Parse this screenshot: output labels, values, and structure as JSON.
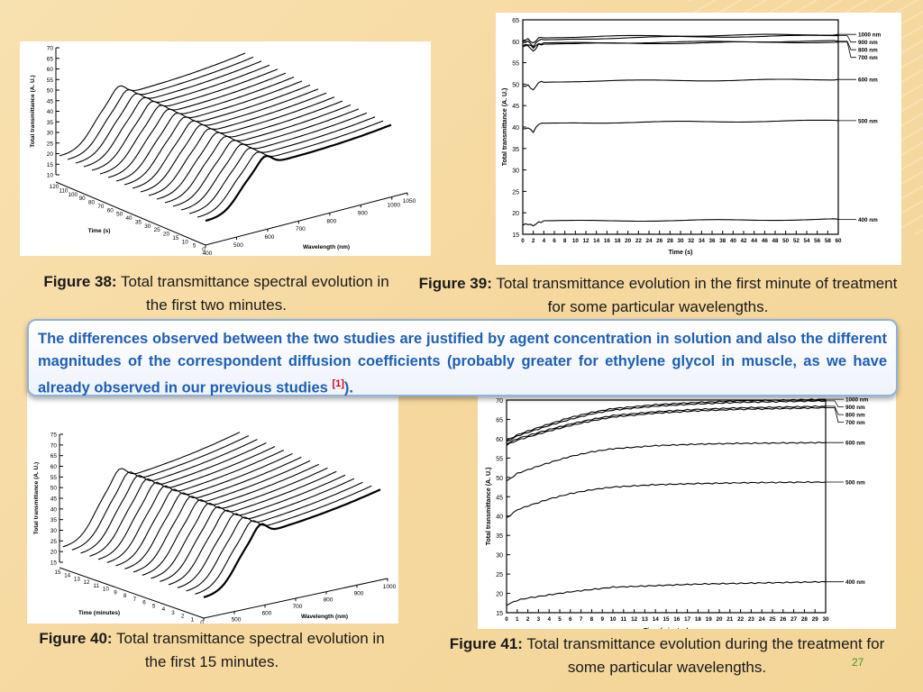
{
  "figures": [
    {
      "label": "Figure 38:",
      "text": "Total transmittance spectral evolution in the first two minutes.",
      "chart_data": {
        "type": "line",
        "kind": "3d-waterfall",
        "ylabel": "Total transmittance (A. U.)",
        "xlabel": "Wavelength (nm)",
        "zlabel": "Time (s)",
        "y_ticks": [
          "10",
          "15",
          "20",
          "25",
          "30",
          "35",
          "40",
          "45",
          "50",
          "55",
          "60",
          "65",
          "70"
        ],
        "x_ticks": [
          "400",
          "500",
          "600",
          "700",
          "800",
          "900",
          "1000",
          "1050"
        ],
        "z_ticks": [
          "120",
          "110",
          "100",
          "90",
          "80",
          "70",
          "60",
          "50",
          "40",
          "35",
          "30",
          "25",
          "20",
          "15",
          "10",
          "5",
          "0"
        ],
        "ylim": [
          10,
          70
        ],
        "xlim": [
          400,
          1050
        ]
      }
    },
    {
      "label": "Figure 39:",
      "text": "Total transmittance evolution in the first minute of treatment for some particular wavelengths.",
      "chart_data": {
        "type": "line",
        "xlabel": "Time (s)",
        "ylabel": "Total transmittance (A. U.)",
        "xlim": [
          0,
          60
        ],
        "ylim": [
          15,
          65
        ],
        "x_ticks": [
          "0",
          "2",
          "4",
          "6",
          "8",
          "10",
          "12",
          "14",
          "16",
          "18",
          "20",
          "22",
          "24",
          "26",
          "28",
          "30",
          "32",
          "34",
          "36",
          "38",
          "40",
          "42",
          "44",
          "46",
          "48",
          "50",
          "52",
          "54",
          "56",
          "58",
          "60"
        ],
        "y_ticks": [
          "15",
          "20",
          "25",
          "30",
          "35",
          "40",
          "45",
          "50",
          "55",
          "60",
          "65"
        ],
        "series": [
          {
            "name": "1000 nm",
            "x": [
              0,
              1,
              2,
              3,
              4,
              10,
              20,
              30,
              40,
              50,
              60
            ],
            "values": [
              60.2,
              60.5,
              59.5,
              60.8,
              60.9,
              61.0,
              61.2,
              61.3,
              61.4,
              61.5,
              61.6
            ]
          },
          {
            "name": "900 nm",
            "x": [
              0,
              1,
              2,
              3,
              4,
              10,
              20,
              30,
              40,
              50,
              60
            ],
            "values": [
              59.6,
              60.0,
              58.8,
              60.3,
              60.4,
              60.6,
              60.8,
              61.0,
              61.1,
              61.2,
              61.3
            ]
          },
          {
            "name": "800 nm",
            "x": [
              0,
              1,
              2,
              3,
              4,
              10,
              20,
              30,
              40,
              50,
              60
            ],
            "values": [
              59.0,
              59.3,
              58.5,
              59.4,
              59.5,
              59.6,
              59.7,
              59.8,
              59.9,
              60.0,
              60.0
            ]
          },
          {
            "name": "700 nm",
            "x": [
              0,
              1,
              2,
              3,
              4,
              10,
              20,
              30,
              40,
              50,
              60
            ],
            "values": [
              58.8,
              59.0,
              57.6,
              59.2,
              59.3,
              59.4,
              59.5,
              59.6,
              59.7,
              59.8,
              59.8
            ]
          },
          {
            "name": "600 nm",
            "x": [
              0,
              1,
              2,
              3,
              4,
              10,
              20,
              30,
              40,
              50,
              60
            ],
            "values": [
              49.5,
              49.7,
              48.6,
              50.4,
              50.6,
              50.7,
              50.8,
              50.9,
              50.9,
              51.0,
              51.1
            ]
          },
          {
            "name": "500 nm",
            "x": [
              0,
              1,
              2,
              3,
              4,
              10,
              20,
              30,
              40,
              50,
              60
            ],
            "values": [
              39.5,
              39.8,
              38.9,
              40.7,
              40.9,
              41.0,
              41.1,
              41.2,
              41.3,
              41.4,
              41.5
            ]
          },
          {
            "name": "400 nm",
            "x": [
              0,
              1,
              2,
              3,
              4,
              10,
              20,
              30,
              40,
              50,
              60
            ],
            "values": [
              17.2,
              17.4,
              17.0,
              17.8,
              18.0,
              18.1,
              18.2,
              18.2,
              18.3,
              18.4,
              18.5
            ]
          }
        ]
      }
    },
    {
      "label": "Figure 40:",
      "text": "Total transmittance spectral evolution in the first 15 minutes.",
      "chart_data": {
        "type": "line",
        "kind": "3d-waterfall",
        "ylabel": "Total transmittance (A. U.)",
        "xlabel": "Wavelength (nm)",
        "zlabel": "Time (minutes)",
        "y_ticks": [
          "15",
          "20",
          "25",
          "30",
          "35",
          "40",
          "45",
          "50",
          "55",
          "60",
          "65",
          "70",
          "75"
        ],
        "x_ticks": [
          "400",
          "500",
          "600",
          "700",
          "800",
          "900",
          "1000"
        ],
        "z_ticks": [
          "15",
          "14",
          "13",
          "12",
          "11",
          "10",
          "9",
          "8",
          "7",
          "6",
          "5",
          "4",
          "3",
          "2",
          "1",
          "0"
        ],
        "ylim": [
          15,
          75
        ],
        "xlim": [
          400,
          1000
        ]
      }
    },
    {
      "label": "Figure 41:",
      "text": "Total transmittance evolution during the treatment for some particular wavelengths.",
      "chart_data": {
        "type": "line",
        "xlabel": "Time (minutes)",
        "ylabel": "Total transmittance (A. U.)",
        "xlim": [
          0,
          30
        ],
        "ylim": [
          15,
          70
        ],
        "x_ticks": [
          "0",
          "1",
          "2",
          "3",
          "4",
          "5",
          "6",
          "7",
          "8",
          "9",
          "10",
          "11",
          "12",
          "13",
          "14",
          "15",
          "16",
          "17",
          "18",
          "19",
          "20",
          "21",
          "22",
          "23",
          "24",
          "25",
          "26",
          "27",
          "28",
          "29",
          "30"
        ],
        "y_ticks": [
          "15",
          "20",
          "25",
          "30",
          "35",
          "40",
          "45",
          "50",
          "55",
          "60",
          "65",
          "70"
        ],
        "series": [
          {
            "name": "1000 nm",
            "x": [
              0,
              1,
              2,
              4,
              6,
              8,
              10,
              14,
              18,
              22,
              26,
              30
            ],
            "values": [
              59.5,
              61.0,
              62.0,
              63.8,
              65.5,
              66.8,
              67.8,
              68.8,
              69.4,
              69.8,
              70.0,
              70.2
            ]
          },
          {
            "name": "900 nm",
            "x": [
              0,
              1,
              2,
              4,
              6,
              8,
              10,
              14,
              18,
              22,
              26,
              30
            ],
            "values": [
              59.2,
              60.7,
              61.6,
              63.4,
              65.0,
              66.4,
              67.4,
              68.4,
              69.0,
              69.4,
              69.6,
              69.8
            ]
          },
          {
            "name": "800 nm",
            "x": [
              0,
              1,
              2,
              4,
              6,
              8,
              10,
              14,
              18,
              22,
              26,
              30
            ],
            "values": [
              58.7,
              60.0,
              60.8,
              62.4,
              63.8,
              65.0,
              66.0,
              67.0,
              67.6,
              68.0,
              68.2,
              68.4
            ]
          },
          {
            "name": "700 nm",
            "x": [
              0,
              1,
              2,
              4,
              6,
              8,
              10,
              14,
              18,
              22,
              26,
              30
            ],
            "values": [
              58.4,
              59.6,
              60.4,
              62.0,
              63.4,
              64.6,
              65.6,
              66.6,
              67.2,
              67.6,
              67.8,
              68.0
            ]
          },
          {
            "name": "600 nm",
            "x": [
              0,
              1,
              2,
              4,
              6,
              8,
              10,
              14,
              18,
              22,
              26,
              30
            ],
            "values": [
              49.0,
              51.0,
              52.0,
              53.8,
              55.4,
              56.6,
              57.4,
              58.2,
              58.6,
              58.8,
              58.9,
              59.0
            ]
          },
          {
            "name": "500 nm",
            "x": [
              0,
              1,
              2,
              4,
              6,
              8,
              10,
              14,
              18,
              22,
              26,
              30
            ],
            "values": [
              39.5,
              41.6,
              42.6,
              44.4,
              45.8,
              46.8,
              47.5,
              48.1,
              48.4,
              48.6,
              48.7,
              48.8
            ]
          },
          {
            "name": "400 nm",
            "x": [
              0,
              1,
              2,
              4,
              6,
              8,
              10,
              14,
              18,
              22,
              26,
              30
            ],
            "values": [
              17.0,
              18.2,
              18.8,
              19.6,
              20.4,
              21.0,
              21.6,
              22.0,
              22.4,
              22.6,
              22.8,
              23.0
            ]
          }
        ]
      }
    }
  ],
  "callout": {
    "text": "The differences observed between the two studies are justified by agent concentration in solution and also the different magnitudes of the correspondent diffusion coefficients (probably greater for ethylene glycol in muscle, as we have already observed in our previous studies ",
    "ref": "[1]",
    "tail": ")."
  },
  "page_number": "27",
  "colors": {
    "background": "#f6d9a0",
    "callout_text": "#1f5fb4",
    "reference": "#d0021b",
    "page_number": "#3a9a2a",
    "callout_border": "#8fb1dd"
  }
}
